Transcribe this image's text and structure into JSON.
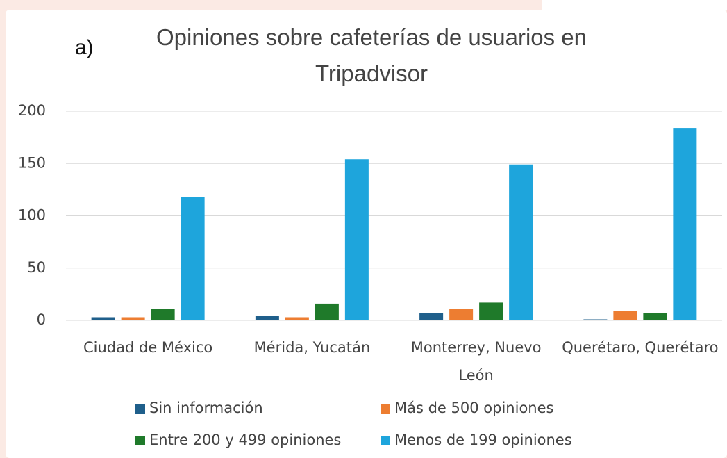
{
  "chart_data": {
    "type": "bar",
    "panel_label": "a)",
    "title": "Opiniones sobre cafeterías de usuarios en Tripadvisor",
    "categories": [
      "Ciudad de México",
      "Mérida, Yucatán",
      "Monterrey, Nuevo León",
      "Querétaro, Querétaro"
    ],
    "series": [
      {
        "name": "Sin información",
        "color": "#1f5f8b",
        "values": [
          3,
          4,
          7,
          1
        ]
      },
      {
        "name": "Más de 500 opiniones",
        "color": "#ed7d31",
        "values": [
          3,
          3,
          11,
          9
        ]
      },
      {
        "name": "Entre 200 y 499 opiniones",
        "color": "#1f7a2a",
        "values": [
          11,
          16,
          17,
          7
        ]
      },
      {
        "name": "Menos de 199 opiniones",
        "color": "#1ea5dc",
        "values": [
          118,
          154,
          149,
          184
        ]
      }
    ],
    "ylim": [
      0,
      200
    ],
    "yticks": [
      0,
      50,
      100,
      150,
      200
    ],
    "grid": true,
    "legend": "bottom"
  }
}
